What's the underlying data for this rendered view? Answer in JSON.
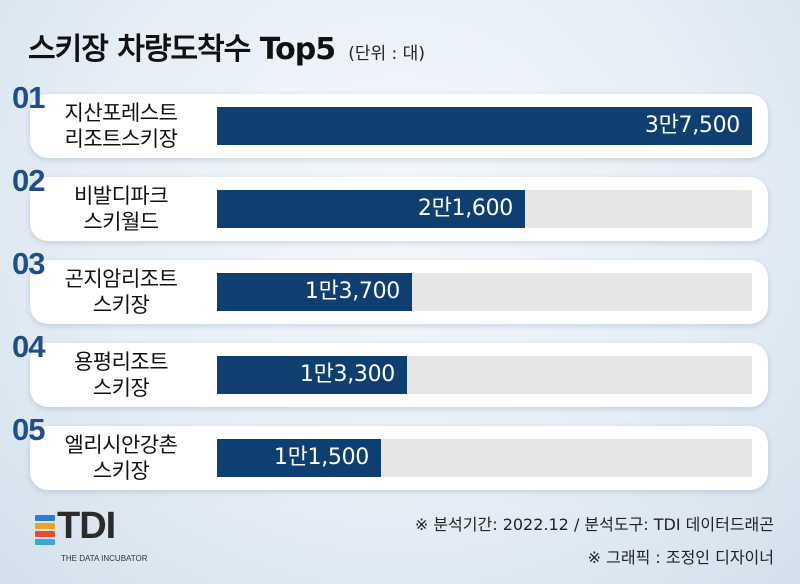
{
  "header": {
    "title": "스키장 차량도착수 Top5",
    "unit": "(단위 : 대)"
  },
  "chart_data": {
    "type": "bar",
    "orientation": "horizontal",
    "title": "스키장 차량도착수 Top5",
    "unit": "(단위 : 대)",
    "ranks": [
      "01",
      "02",
      "03",
      "04",
      "05"
    ],
    "categories": [
      "지산포레스트\n리조트스키장",
      "비발디파크\n스키월드",
      "곤지암리조트\n스키장",
      "용평리조트\n스키장",
      "엘리시안강촌\n스키장"
    ],
    "values": [
      37500,
      21600,
      13700,
      13300,
      11500
    ],
    "value_labels": [
      "3만7,500",
      "2만1,600",
      "1만3,700",
      "1만3,300",
      "1만1,500"
    ],
    "xlim": [
      0,
      37500
    ],
    "colors": {
      "bar": "#0f3f70",
      "track": "#e6e6e6",
      "rank": "#1e4f86"
    }
  },
  "footer": {
    "source_note": "※ 분석기간: 2022.12 / 분석도구: TDI 데이터드래곤",
    "graphic_note": "※ 그래픽 : 조정인 디자이너",
    "logo_text": "TDI",
    "logo_sub": "THE DATA INCUBATOR",
    "logo_colors": [
      "#2b7cd3",
      "#f0a11e",
      "#e54a34",
      "#3aa7d8"
    ]
  }
}
